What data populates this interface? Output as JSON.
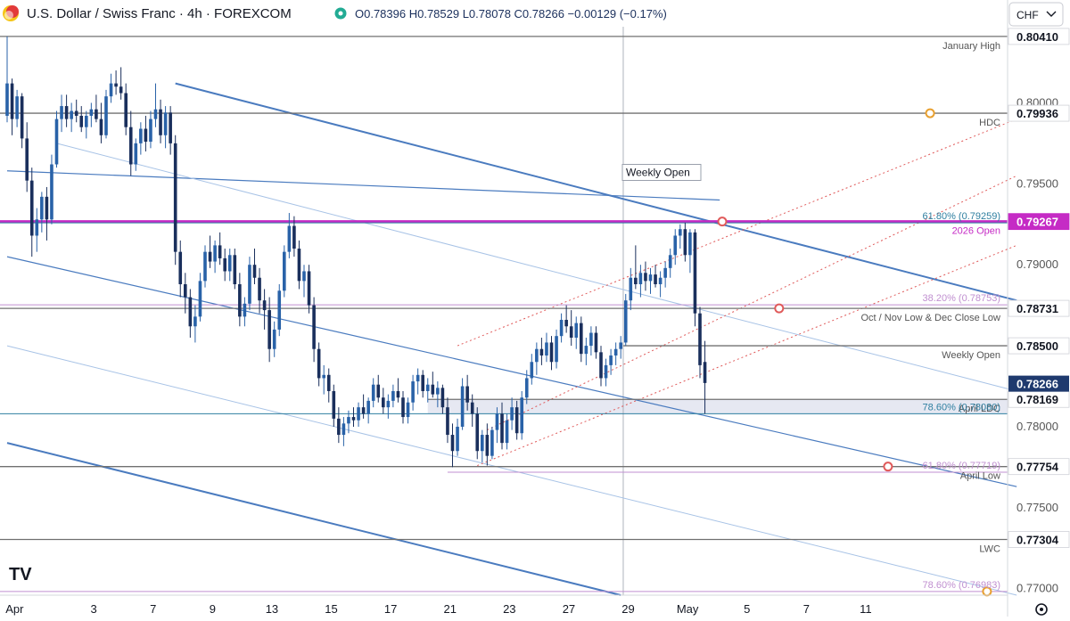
{
  "header": {
    "title": "U.S. Dollar / Swiss Franc · 4h · FOREXCOM",
    "ohlc": "O0.78396 H0.78529 L0.78078 C0.78266 −0.00129 (−0.17%)",
    "currency": "CHF"
  },
  "colors": {
    "bull": "#2962a8",
    "bear": "#1a2f5c",
    "channel": "#4a7bbf",
    "channel_light": "#a8c3e6",
    "level": "#707070",
    "magenta": "#c52bc5",
    "fib": "#c08fd0",
    "fib_red": "#e05a5a",
    "orange": "#e8a030",
    "zone": "#e6e8f2",
    "last_price_bg": "#1f3a6e"
  },
  "chart_data": {
    "type": "candlestick",
    "instrument": "U.S. Dollar / Swiss Franc",
    "timeframe": "4h",
    "ylim": [
      0.7696,
      0.8047
    ],
    "y_ticks": [
      0.77,
      0.775,
      0.78,
      0.785,
      0.79,
      0.795,
      0.8
    ],
    "y_tick_labels": [
      "0.77000",
      "0.77500",
      "0.78000",
      "0.78500",
      "0.79000",
      "0.79500",
      "0.80000"
    ],
    "x_ticks": [
      {
        "label": "Apr",
        "bar": 1.5
      },
      {
        "label": "3",
        "bar": 17.5
      },
      {
        "label": "7",
        "bar": 29.5
      },
      {
        "label": "9",
        "bar": 41.5
      },
      {
        "label": "13",
        "bar": 53.5
      },
      {
        "label": "15",
        "bar": 65.5
      },
      {
        "label": "17",
        "bar": 77.5
      },
      {
        "label": "21",
        "bar": 89.5
      },
      {
        "label": "23",
        "bar": 101.5
      },
      {
        "label": "27",
        "bar": 113.5
      },
      {
        "label": "29",
        "bar": 125.5
      },
      {
        "label": "May",
        "bar": 137.5
      },
      {
        "label": "5",
        "bar": 149.5
      },
      {
        "label": "7",
        "bar": 161.5
      },
      {
        "label": "11",
        "bar": 173.5
      }
    ],
    "price_levels": [
      {
        "value": 0.8041,
        "label": "0.80410",
        "name": "January High",
        "style": "gray"
      },
      {
        "value": 0.79936,
        "label": "0.79936",
        "name": "HDC",
        "style": "gray"
      },
      {
        "value": 0.79267,
        "label": "0.79267",
        "name": "2026 Open",
        "style": "magenta"
      },
      {
        "value": 0.78731,
        "label": "0.78731",
        "name": "Oct / Nov Low & Dec Close Low",
        "style": "gray"
      },
      {
        "value": 0.785,
        "label": "0.78500",
        "name": "Weekly Open",
        "style": "gray"
      },
      {
        "value": 0.78169,
        "label": "0.78169",
        "name": "April LDC",
        "style": "gray"
      },
      {
        "value": 0.77754,
        "label": "0.77754",
        "name": "April Low",
        "style": "gray"
      },
      {
        "value": 0.77304,
        "label": "0.77304",
        "name": "LWC",
        "style": "gray"
      }
    ],
    "fib_levels": [
      {
        "value": 0.79259,
        "label": "61.80% (0.79259)",
        "color": "teal"
      },
      {
        "value": 0.78753,
        "label": "38.20% (0.78753)",
        "color": "purple"
      },
      {
        "value": 0.7808,
        "label": "78.60% (0.78080)",
        "color": "teal"
      },
      {
        "value": 0.77719,
        "label": "61.80% (0.77719)",
        "color": "purple"
      },
      {
        "value": 0.76983,
        "label": "78.60% (0.76983)",
        "color": "purple"
      }
    ],
    "last_price": {
      "value": 0.78266,
      "label": "0.78266"
    },
    "annotation_weekly_open": "Weekly Open",
    "candles": [
      [
        0.7992,
        0.8041,
        0.7988,
        0.8012
      ],
      [
        0.8012,
        0.8015,
        0.798,
        0.799
      ],
      [
        0.799,
        0.8008,
        0.7985,
        0.8004
      ],
      [
        0.8004,
        0.8006,
        0.7972,
        0.7978
      ],
      [
        0.7978,
        0.7988,
        0.7945,
        0.7952
      ],
      [
        0.7952,
        0.796,
        0.7905,
        0.7918
      ],
      [
        0.7918,
        0.7935,
        0.7908,
        0.7928
      ],
      [
        0.7928,
        0.7945,
        0.792,
        0.7942
      ],
      [
        0.7942,
        0.7948,
        0.7915,
        0.7928
      ],
      [
        0.7928,
        0.7968,
        0.7925,
        0.7962
      ],
      [
        0.7962,
        0.7995,
        0.796,
        0.799
      ],
      [
        0.799,
        0.8005,
        0.7982,
        0.7998
      ],
      [
        0.7998,
        0.8005,
        0.7985,
        0.799
      ],
      [
        0.799,
        0.8,
        0.7982,
        0.7995
      ],
      [
        0.7995,
        0.8002,
        0.7988,
        0.7992
      ],
      [
        0.7992,
        0.7998,
        0.7982,
        0.7985
      ],
      [
        0.7985,
        0.7995,
        0.7978,
        0.7992
      ],
      [
        0.7992,
        0.8,
        0.7985,
        0.7996
      ],
      [
        0.7996,
        0.8005,
        0.7988,
        0.799
      ],
      [
        0.799,
        0.8,
        0.7975,
        0.798
      ],
      [
        0.798,
        0.8008,
        0.7978,
        0.8004
      ],
      [
        0.8004,
        0.8018,
        0.8,
        0.8012
      ],
      [
        0.8012,
        0.802,
        0.8005,
        0.801
      ],
      [
        0.801,
        0.8022,
        0.8002,
        0.8006
      ],
      [
        0.8006,
        0.8012,
        0.798,
        0.7985
      ],
      [
        0.7985,
        0.7995,
        0.7955,
        0.7962
      ],
      [
        0.7962,
        0.7978,
        0.7958,
        0.7975
      ],
      [
        0.7975,
        0.7988,
        0.7968,
        0.7984
      ],
      [
        0.7984,
        0.7992,
        0.797,
        0.7976
      ],
      [
        0.7976,
        0.7995,
        0.7972,
        0.799
      ],
      [
        0.799,
        0.8012,
        0.7985,
        0.7996
      ],
      [
        0.7996,
        0.8002,
        0.7975,
        0.798
      ],
      [
        0.798,
        0.7998,
        0.7972,
        0.7994
      ],
      [
        0.7994,
        0.7998,
        0.7968,
        0.7975
      ],
      [
        0.7975,
        0.798,
        0.79,
        0.7908
      ],
      [
        0.7908,
        0.7915,
        0.788,
        0.7888
      ],
      [
        0.7888,
        0.7895,
        0.787,
        0.788
      ],
      [
        0.788,
        0.7885,
        0.7855,
        0.7862
      ],
      [
        0.7862,
        0.7875,
        0.7852,
        0.7868
      ],
      [
        0.7868,
        0.7895,
        0.7865,
        0.789
      ],
      [
        0.789,
        0.7912,
        0.7886,
        0.7908
      ],
      [
        0.7908,
        0.7918,
        0.7898,
        0.7902
      ],
      [
        0.7902,
        0.7915,
        0.7895,
        0.7912
      ],
      [
        0.7912,
        0.792,
        0.79,
        0.7904
      ],
      [
        0.7904,
        0.791,
        0.789,
        0.7896
      ],
      [
        0.7896,
        0.791,
        0.789,
        0.7906
      ],
      [
        0.7906,
        0.791,
        0.7885,
        0.7888
      ],
      [
        0.7888,
        0.7895,
        0.7862,
        0.7868
      ],
      [
        0.7868,
        0.788,
        0.7862,
        0.7876
      ],
      [
        0.7876,
        0.7905,
        0.7872,
        0.79
      ],
      [
        0.79,
        0.791,
        0.7888,
        0.7892
      ],
      [
        0.7892,
        0.7898,
        0.787,
        0.7878
      ],
      [
        0.7878,
        0.7885,
        0.786,
        0.7872
      ],
      [
        0.7872,
        0.788,
        0.784,
        0.7848
      ],
      [
        0.7848,
        0.7865,
        0.7843,
        0.786
      ],
      [
        0.786,
        0.7888,
        0.7856,
        0.7884
      ],
      [
        0.7884,
        0.7912,
        0.788,
        0.7908
      ],
      [
        0.7908,
        0.7932,
        0.7904,
        0.7924
      ],
      [
        0.7924,
        0.793,
        0.7905,
        0.791
      ],
      [
        0.791,
        0.7915,
        0.7885,
        0.789
      ],
      [
        0.789,
        0.79,
        0.788,
        0.7896
      ],
      [
        0.7896,
        0.79,
        0.787,
        0.7875
      ],
      [
        0.7875,
        0.788,
        0.784,
        0.7848
      ],
      [
        0.7848,
        0.7852,
        0.7825,
        0.783
      ],
      [
        0.783,
        0.7838,
        0.782,
        0.7832
      ],
      [
        0.7832,
        0.7836,
        0.7815,
        0.7822
      ],
      [
        0.7822,
        0.7826,
        0.78,
        0.7805
      ],
      [
        0.7805,
        0.7812,
        0.779,
        0.7795
      ],
      [
        0.7795,
        0.7806,
        0.7788,
        0.7802
      ],
      [
        0.7802,
        0.781,
        0.7796,
        0.7806
      ],
      [
        0.7806,
        0.7812,
        0.78,
        0.7804
      ],
      [
        0.7804,
        0.7815,
        0.78,
        0.7812
      ],
      [
        0.7812,
        0.782,
        0.7805,
        0.7808
      ],
      [
        0.7808,
        0.7818,
        0.7802,
        0.7816
      ],
      [
        0.7816,
        0.783,
        0.7812,
        0.7826
      ],
      [
        0.7826,
        0.7832,
        0.7815,
        0.7818
      ],
      [
        0.7818,
        0.7824,
        0.7808,
        0.7812
      ],
      [
        0.7812,
        0.782,
        0.7805,
        0.7816
      ],
      [
        0.7816,
        0.7826,
        0.7812,
        0.7822
      ],
      [
        0.7822,
        0.783,
        0.7815,
        0.7818
      ],
      [
        0.7818,
        0.7822,
        0.7802,
        0.7806
      ],
      [
        0.7806,
        0.7818,
        0.7802,
        0.7815
      ],
      [
        0.7815,
        0.7832,
        0.781,
        0.7828
      ],
      [
        0.7828,
        0.7836,
        0.782,
        0.7832
      ],
      [
        0.7832,
        0.7835,
        0.7818,
        0.7822
      ],
      [
        0.7822,
        0.783,
        0.7815,
        0.7826
      ],
      [
        0.7826,
        0.7834,
        0.7818,
        0.782
      ],
      [
        0.782,
        0.7828,
        0.7812,
        0.7824
      ],
      [
        0.7824,
        0.7826,
        0.7808,
        0.7812
      ],
      [
        0.7812,
        0.7818,
        0.779,
        0.7795
      ],
      [
        0.7795,
        0.7802,
        0.7775,
        0.7785
      ],
      [
        0.7785,
        0.7805,
        0.7782,
        0.78
      ],
      [
        0.78,
        0.783,
        0.7798,
        0.7825
      ],
      [
        0.7825,
        0.7832,
        0.781,
        0.7815
      ],
      [
        0.7815,
        0.782,
        0.78,
        0.7808
      ],
      [
        0.7808,
        0.7812,
        0.778,
        0.7785
      ],
      [
        0.7785,
        0.7798,
        0.7778,
        0.7795
      ],
      [
        0.7795,
        0.7802,
        0.7776,
        0.7782
      ],
      [
        0.7782,
        0.78,
        0.778,
        0.7798
      ],
      [
        0.7798,
        0.7812,
        0.779,
        0.7808
      ],
      [
        0.7808,
        0.7815,
        0.7786,
        0.779
      ],
      [
        0.779,
        0.7808,
        0.7786,
        0.7804
      ],
      [
        0.7804,
        0.7818,
        0.7798,
        0.7812
      ],
      [
        0.7812,
        0.7816,
        0.7792,
        0.7796
      ],
      [
        0.7796,
        0.7822,
        0.7792,
        0.7818
      ],
      [
        0.7818,
        0.7835,
        0.7814,
        0.783
      ],
      [
        0.783,
        0.7845,
        0.7826,
        0.784
      ],
      [
        0.784,
        0.7852,
        0.7832,
        0.7848
      ],
      [
        0.7848,
        0.7855,
        0.7838,
        0.7844
      ],
      [
        0.7844,
        0.7858,
        0.784,
        0.7852
      ],
      [
        0.7852,
        0.7856,
        0.7835,
        0.784
      ],
      [
        0.784,
        0.786,
        0.7836,
        0.7856
      ],
      [
        0.7856,
        0.787,
        0.7852,
        0.7866
      ],
      [
        0.7866,
        0.7875,
        0.7858,
        0.7862
      ],
      [
        0.7862,
        0.7872,
        0.785,
        0.7855
      ],
      [
        0.7855,
        0.7868,
        0.7848,
        0.7864
      ],
      [
        0.7864,
        0.7868,
        0.784,
        0.7845
      ],
      [
        0.7845,
        0.7855,
        0.7838,
        0.785
      ],
      [
        0.785,
        0.7862,
        0.7844,
        0.7858
      ],
      [
        0.7858,
        0.7862,
        0.7842,
        0.7846
      ],
      [
        0.7846,
        0.785,
        0.7825,
        0.783
      ],
      [
        0.783,
        0.7842,
        0.7825,
        0.7838
      ],
      [
        0.7838,
        0.7848,
        0.7832,
        0.7844
      ],
      [
        0.7844,
        0.7852,
        0.7838,
        0.7848
      ],
      [
        0.7848,
        0.7856,
        0.7842,
        0.7852
      ],
      [
        0.7852,
        0.7882,
        0.785,
        0.7878
      ],
      [
        0.7878,
        0.7898,
        0.7872,
        0.7892
      ],
      [
        0.7892,
        0.7912,
        0.7885,
        0.7888
      ],
      [
        0.7888,
        0.79,
        0.788,
        0.7895
      ],
      [
        0.7895,
        0.7902,
        0.7884,
        0.789
      ],
      [
        0.789,
        0.7898,
        0.7882,
        0.7894
      ],
      [
        0.7894,
        0.79,
        0.7886,
        0.7888
      ],
      [
        0.7888,
        0.7896,
        0.788,
        0.7892
      ],
      [
        0.7892,
        0.7902,
        0.7886,
        0.7898
      ],
      [
        0.7898,
        0.791,
        0.7892,
        0.7906
      ],
      [
        0.7906,
        0.7922,
        0.79,
        0.7918
      ],
      [
        0.7918,
        0.7925,
        0.791,
        0.7922
      ],
      [
        0.7922,
        0.7926,
        0.7902,
        0.7906
      ],
      [
        0.7906,
        0.7922,
        0.7895,
        0.792
      ],
      [
        0.792,
        0.7922,
        0.7862,
        0.787
      ],
      [
        0.787,
        0.7874,
        0.783,
        0.7838
      ],
      [
        0.784,
        0.7853,
        0.7808,
        0.7827
      ]
    ]
  }
}
